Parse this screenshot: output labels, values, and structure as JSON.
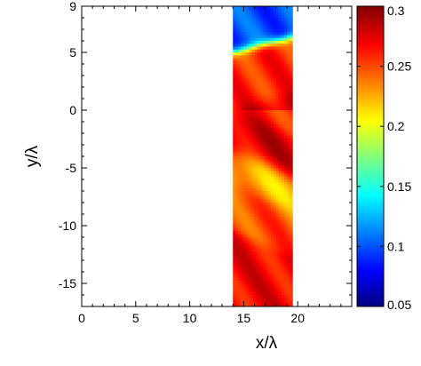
{
  "chart_data": {
    "type": "heatmap",
    "title": "",
    "xlabel": "x/λ",
    "ylabel": "y/λ",
    "xlim": [
      0,
      25
    ],
    "ylim": [
      -17,
      9
    ],
    "x_ticks": [
      0,
      5,
      10,
      15,
      20
    ],
    "y_ticks": [
      9,
      5,
      0,
      -5,
      -10,
      -15
    ],
    "grid": false,
    "data_region": {
      "x_range": [
        14,
        19.5
      ],
      "y_range": [
        -17,
        9
      ]
    },
    "colorbar": {
      "range": [
        0.05,
        0.3
      ],
      "ticks": [
        0.3,
        0.25,
        0.2,
        0.15,
        0.1,
        0.05
      ],
      "colormap": "jet",
      "stops": [
        "#000080",
        "#0000ff",
        "#00ffff",
        "#ffff00",
        "#ff0000",
        "#800000"
      ]
    },
    "description_values": {
      "y_band_centers": [
        8,
        2,
        -2,
        -5,
        -8,
        -13
      ],
      "y_band_levels": [
        0.1,
        0.26,
        0.28,
        0.22,
        0.25,
        0.27
      ]
    }
  }
}
